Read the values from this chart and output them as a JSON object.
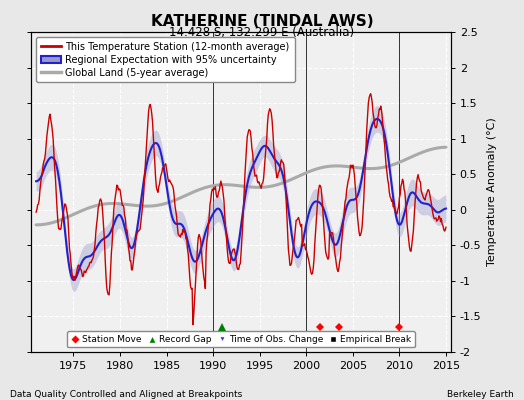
{
  "title": "KATHERINE (TINDAL AWS)",
  "subtitle": "14.428 S, 132.299 E (Australia)",
  "ylabel": "Temperature Anomaly (°C)",
  "xlabel_left": "Data Quality Controlled and Aligned at Breakpoints",
  "xlabel_right": "Berkeley Earth",
  "xlim": [
    1970.5,
    2015.5
  ],
  "ylim": [
    -2.0,
    2.5
  ],
  "yticks": [
    -2.0,
    -1.5,
    -1.0,
    -0.5,
    0.0,
    0.5,
    1.0,
    1.5,
    2.0,
    2.5
  ],
  "xticks": [
    1975,
    1980,
    1985,
    1990,
    1995,
    2000,
    2005,
    2010,
    2015
  ],
  "bg_color": "#e8e8e8",
  "plot_bg_color": "#f0f0f0",
  "grid_color": "#ffffff",
  "grid_linestyle": "--",
  "vertical_lines": [
    1990.0,
    2000.0,
    2010.0
  ],
  "station_moves": [
    2001.5,
    2003.5,
    2010.0
  ],
  "record_gaps": [
    1991.0
  ],
  "obs_changes": [],
  "emp_breaks": [],
  "red_color": "#cc0000",
  "blue_color": "#2222cc",
  "blue_fill_color": "#9999cc",
  "gray_color": "#aaaaaa",
  "marker_y": -1.65
}
